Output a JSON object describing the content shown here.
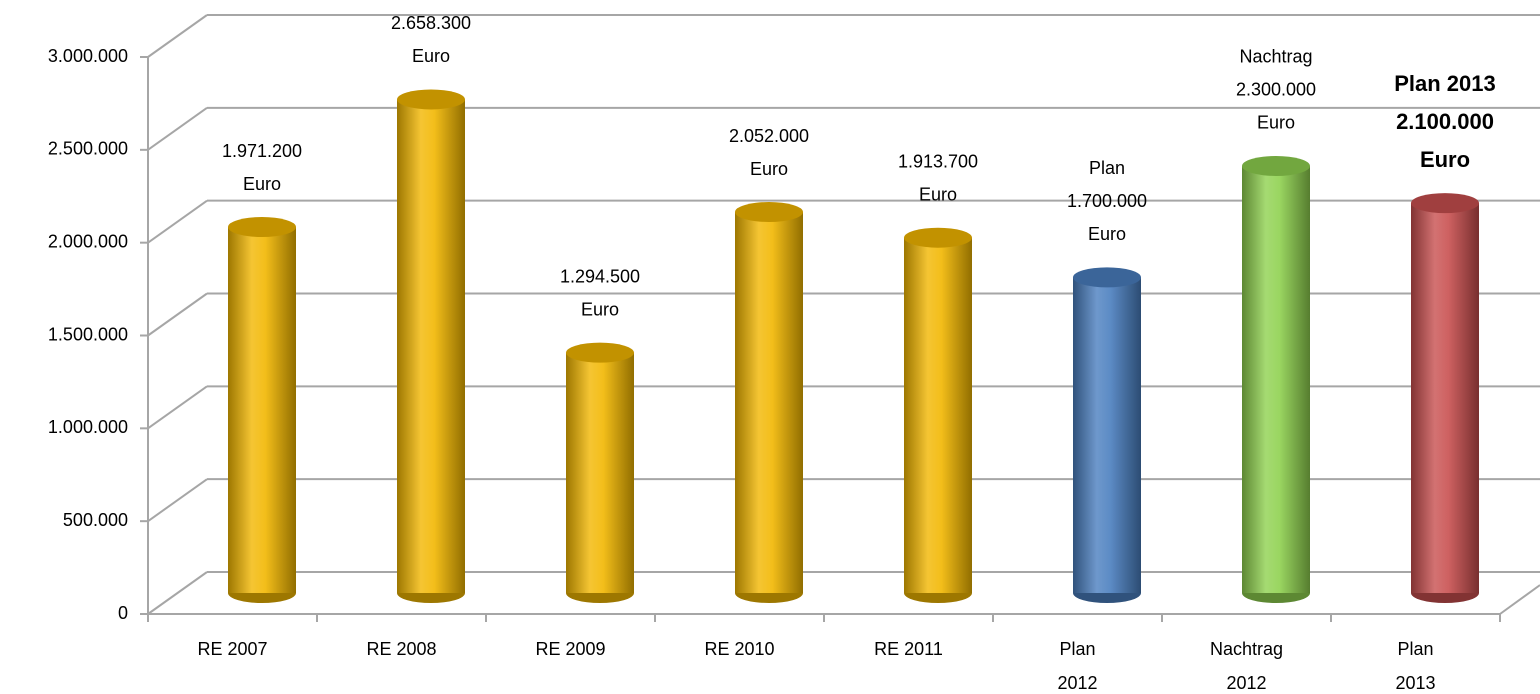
{
  "chart_data": {
    "type": "bar3d",
    "categories": [
      [
        "RE 2007"
      ],
      [
        "RE 2008"
      ],
      [
        "RE 2009"
      ],
      [
        "RE 2010"
      ],
      [
        "RE 2011"
      ],
      [
        "Plan",
        "2012"
      ],
      [
        "Nachtrag",
        "2012"
      ],
      [
        "Plan",
        "2013"
      ]
    ],
    "values": [
      1971200,
      2658300,
      1294500,
      2052000,
      1913700,
      1700000,
      2300000,
      2100000
    ],
    "value_labels": [
      [
        "1.971.200",
        "Euro"
      ],
      [
        "2.658.300",
        "Euro"
      ],
      [
        "1.294.500",
        "Euro"
      ],
      [
        "2.052.000",
        "Euro"
      ],
      [
        "1.913.700",
        "Euro"
      ],
      [
        "Plan",
        "1.700.000",
        "Euro"
      ],
      [
        "Nachtrag",
        "2.300.000",
        "Euro"
      ],
      [
        "Plan 2013",
        "2.100.000",
        "Euro"
      ]
    ],
    "value_label_bold": [
      false,
      false,
      false,
      false,
      false,
      false,
      false,
      true
    ],
    "colors": [
      "#f2b700",
      "#f2b700",
      "#f2b700",
      "#f2b700",
      "#f2b700",
      "#4a7ebf",
      "#8fd14f",
      "#c84f4f"
    ],
    "ylim": [
      0,
      3000000
    ],
    "yticks": [
      0,
      {
        "value": 500000,
        "label": "500.000"
      },
      {
        "value": 1000000,
        "label": "1.000.000"
      },
      {
        "value": 1500000,
        "label": "1.500.000"
      },
      {
        "value": 2000000,
        "label": "2.000.000"
      },
      {
        "value": 2500000,
        "label": "2.500.000"
      },
      {
        "value": 3000000,
        "label": "3.000.000"
      }
    ],
    "grid": true
  }
}
